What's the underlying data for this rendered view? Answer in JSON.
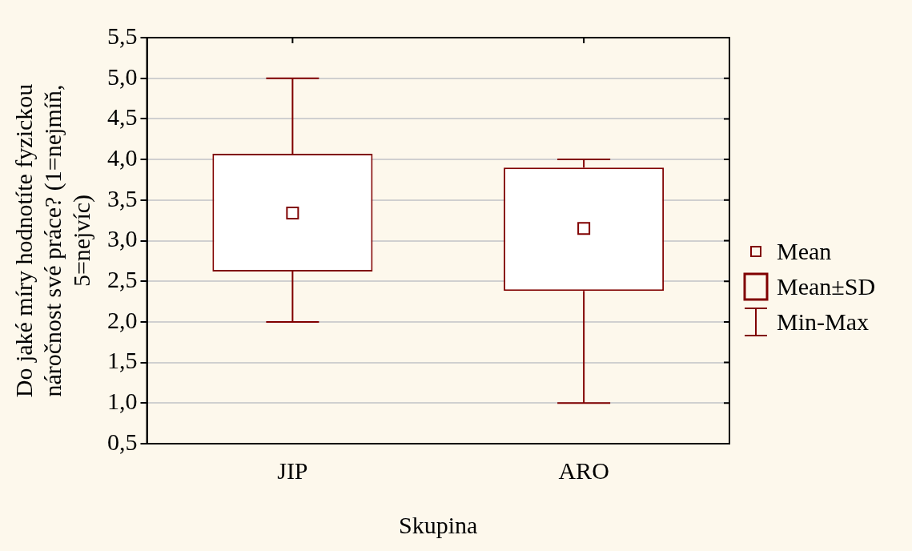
{
  "chart_data": {
    "type": "box",
    "xlabel": "Skupina",
    "ylabel": "Do jaké míry hodnotíte fyzickou náročnost své práce? (1=nejmíň, 5=nejvíc)",
    "categories": [
      "JIP",
      "ARO"
    ],
    "color": "#800000",
    "boxes": [
      {
        "low": 2.0,
        "q1": 2.62,
        "q3": 4.07,
        "high": 5.0,
        "mean": 3.34
      },
      {
        "low": 1.0,
        "q1": 2.38,
        "q3": 3.9,
        "high": 4.0,
        "mean": 3.15
      }
    ],
    "ylim": [
      0.5,
      5.5
    ],
    "yticks": [
      {
        "value": 0.5,
        "label": "0,5"
      },
      {
        "value": 1,
        "label": "1,0"
      },
      {
        "value": 1.5,
        "label": "1,5"
      },
      {
        "value": 2,
        "label": "2,0"
      },
      {
        "value": 2.5,
        "label": "2,5"
      },
      {
        "value": 3,
        "label": "3,0"
      },
      {
        "value": 3.5,
        "label": "3,5"
      },
      {
        "value": 4,
        "label": "4,0"
      },
      {
        "value": 4.5,
        "label": "4,5"
      },
      {
        "value": 5,
        "label": "5,0"
      },
      {
        "value": 5.5,
        "label": "5,5"
      }
    ],
    "grid": "y",
    "marker": "square",
    "annotations": [
      "Mean",
      "Mean±SD",
      "Min-Max"
    ]
  }
}
